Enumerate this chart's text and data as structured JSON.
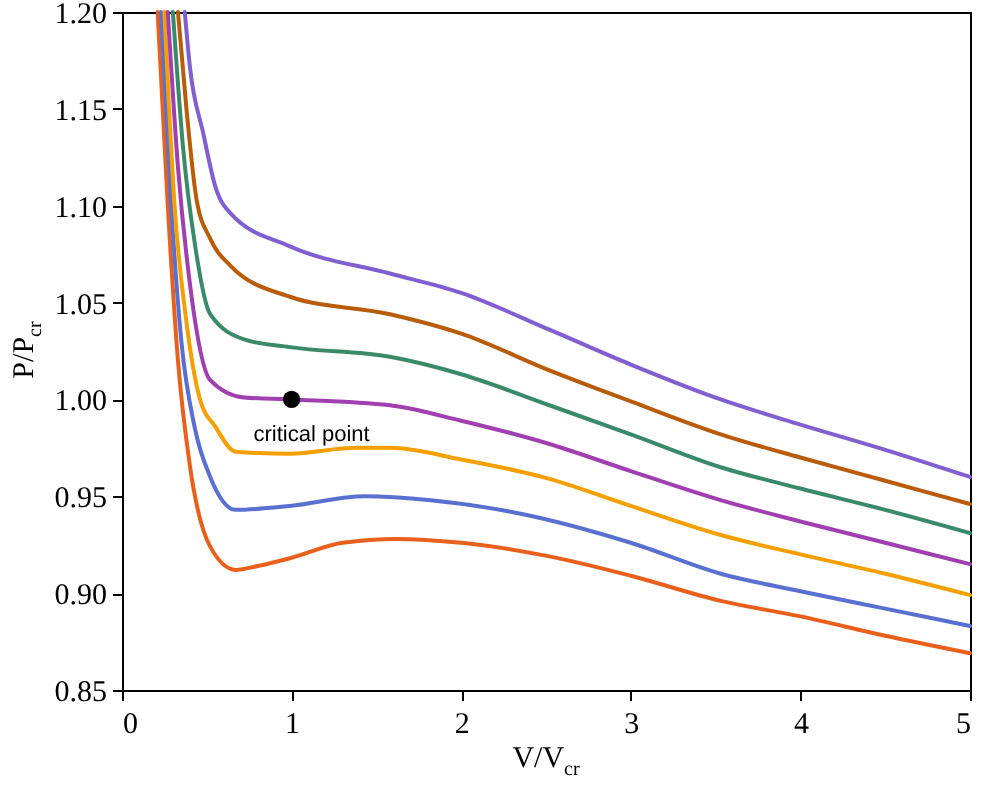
{
  "chart_data": {
    "type": "line",
    "xlabel": "V/V$_{cr}$",
    "ylabel": "P/P$_{cr}$",
    "xlim": [
      0,
      5
    ],
    "xticks": [
      0,
      1,
      2,
      3,
      4,
      5
    ],
    "ylim": [
      0.85,
      1.2
    ],
    "yticks": [
      {
        "value": 0.85,
        "label": "0.85"
      },
      {
        "value": 0.9,
        "label": "0.90"
      },
      {
        "value": 0.95,
        "label": "0.95"
      },
      {
        "value": 1.0,
        "label": "1.00"
      },
      {
        "value": 1.05,
        "label": "1.05"
      },
      {
        "value": 1.1,
        "label": "1.10"
      },
      {
        "value": 1.15,
        "label": "1.15"
      },
      {
        "value": 1.2,
        "label": "1.20"
      }
    ],
    "grid": false,
    "line_style": "solid",
    "series": [
      {
        "color": "#e8601c",
        "x": [
          0.21,
          0.27,
          0.33,
          0.4,
          0.52,
          0.67,
          0.8,
          0.99,
          1.3,
          1.62,
          2.0,
          2.52,
          3.0,
          3.53,
          4.0,
          4.5,
          5
        ],
        "values": [
          1.2,
          1.1,
          1.02,
          0.966,
          0.924,
          0.912,
          0.914,
          0.918,
          0.926,
          0.928,
          0.926,
          0.919,
          0.909,
          0.896,
          0.888,
          0.878,
          0.869
        ]
      },
      {
        "color": "#5a70d0",
        "x": [
          0.23,
          0.29,
          0.35,
          0.43,
          0.52,
          0.67,
          0.99,
          1.43,
          1.82,
          2.35,
          3.0,
          3.53,
          4.0,
          4.5,
          5
        ],
        "values": [
          1.2,
          1.1,
          1.03,
          0.985,
          0.96,
          0.943,
          0.945,
          0.95,
          0.948,
          0.941,
          0.926,
          0.91,
          0.901,
          0.892,
          0.883
        ]
      },
      {
        "color": "#f5a000",
        "x": [
          0.25,
          0.31,
          0.38,
          0.46,
          0.55,
          0.67,
          0.99,
          1.38,
          1.58,
          2.0,
          2.52,
          3.0,
          3.53,
          4.0,
          4.5,
          5
        ],
        "values": [
          1.2,
          1.1,
          1.04,
          1.0,
          0.986,
          0.973,
          0.972,
          0.975,
          0.975,
          0.969,
          0.959,
          0.945,
          0.93,
          0.92,
          0.91,
          0.899
        ]
      },
      {
        "color": "#a040b0",
        "x": [
          0.27,
          0.33,
          0.4,
          0.52,
          0.72,
          1.0,
          1.58,
          2.0,
          2.52,
          3.0,
          3.53,
          4.0,
          4.5,
          5
        ],
        "values": [
          1.2,
          1.12,
          1.06,
          1.01,
          1.001,
          1.0,
          0.997,
          0.989,
          0.977,
          0.963,
          0.948,
          0.937,
          0.926,
          0.915
        ]
      },
      {
        "color": "#3a8a6a",
        "x": [
          0.3,
          0.36,
          0.43,
          0.52,
          0.72,
          0.99,
          1.58,
          2.0,
          2.52,
          3.0,
          3.53,
          4.0,
          4.5,
          5
        ],
        "values": [
          1.2,
          1.13,
          1.08,
          1.044,
          1.031,
          1.027,
          1.022,
          1.013,
          0.997,
          0.982,
          0.965,
          0.954,
          0.943,
          0.931
        ]
      },
      {
        "color": "#b85c0a",
        "x": [
          0.33,
          0.38,
          0.44,
          0.52,
          0.64,
          0.99,
          1.58,
          2.0,
          2.52,
          3.0,
          3.53,
          4.0,
          4.5,
          5
        ],
        "values": [
          1.2,
          1.15,
          1.103,
          1.083,
          1.069,
          1.053,
          1.044,
          1.034,
          1.015,
          0.999,
          0.982,
          0.97,
          0.958,
          0.946
        ]
      },
      {
        "color": "#8060d0",
        "x": [
          0.37,
          0.4,
          0.48,
          0.55,
          0.64,
          0.99,
          1.58,
          2.0,
          2.52,
          3.0,
          3.53,
          4.0,
          4.5,
          5
        ],
        "values": [
          1.2,
          1.172,
          1.137,
          1.11,
          1.096,
          1.079,
          1.065,
          1.055,
          1.036,
          1.018,
          1.0,
          0.987,
          0.974,
          0.96
        ]
      },
      {
        "type": "scatter",
        "marker": "circle",
        "color": "#000000",
        "x": [
          1
        ],
        "values": [
          1.0
        ]
      }
    ],
    "annotations": [
      {
        "text": "critical point",
        "x": 1,
        "y": 1.0
      }
    ]
  }
}
